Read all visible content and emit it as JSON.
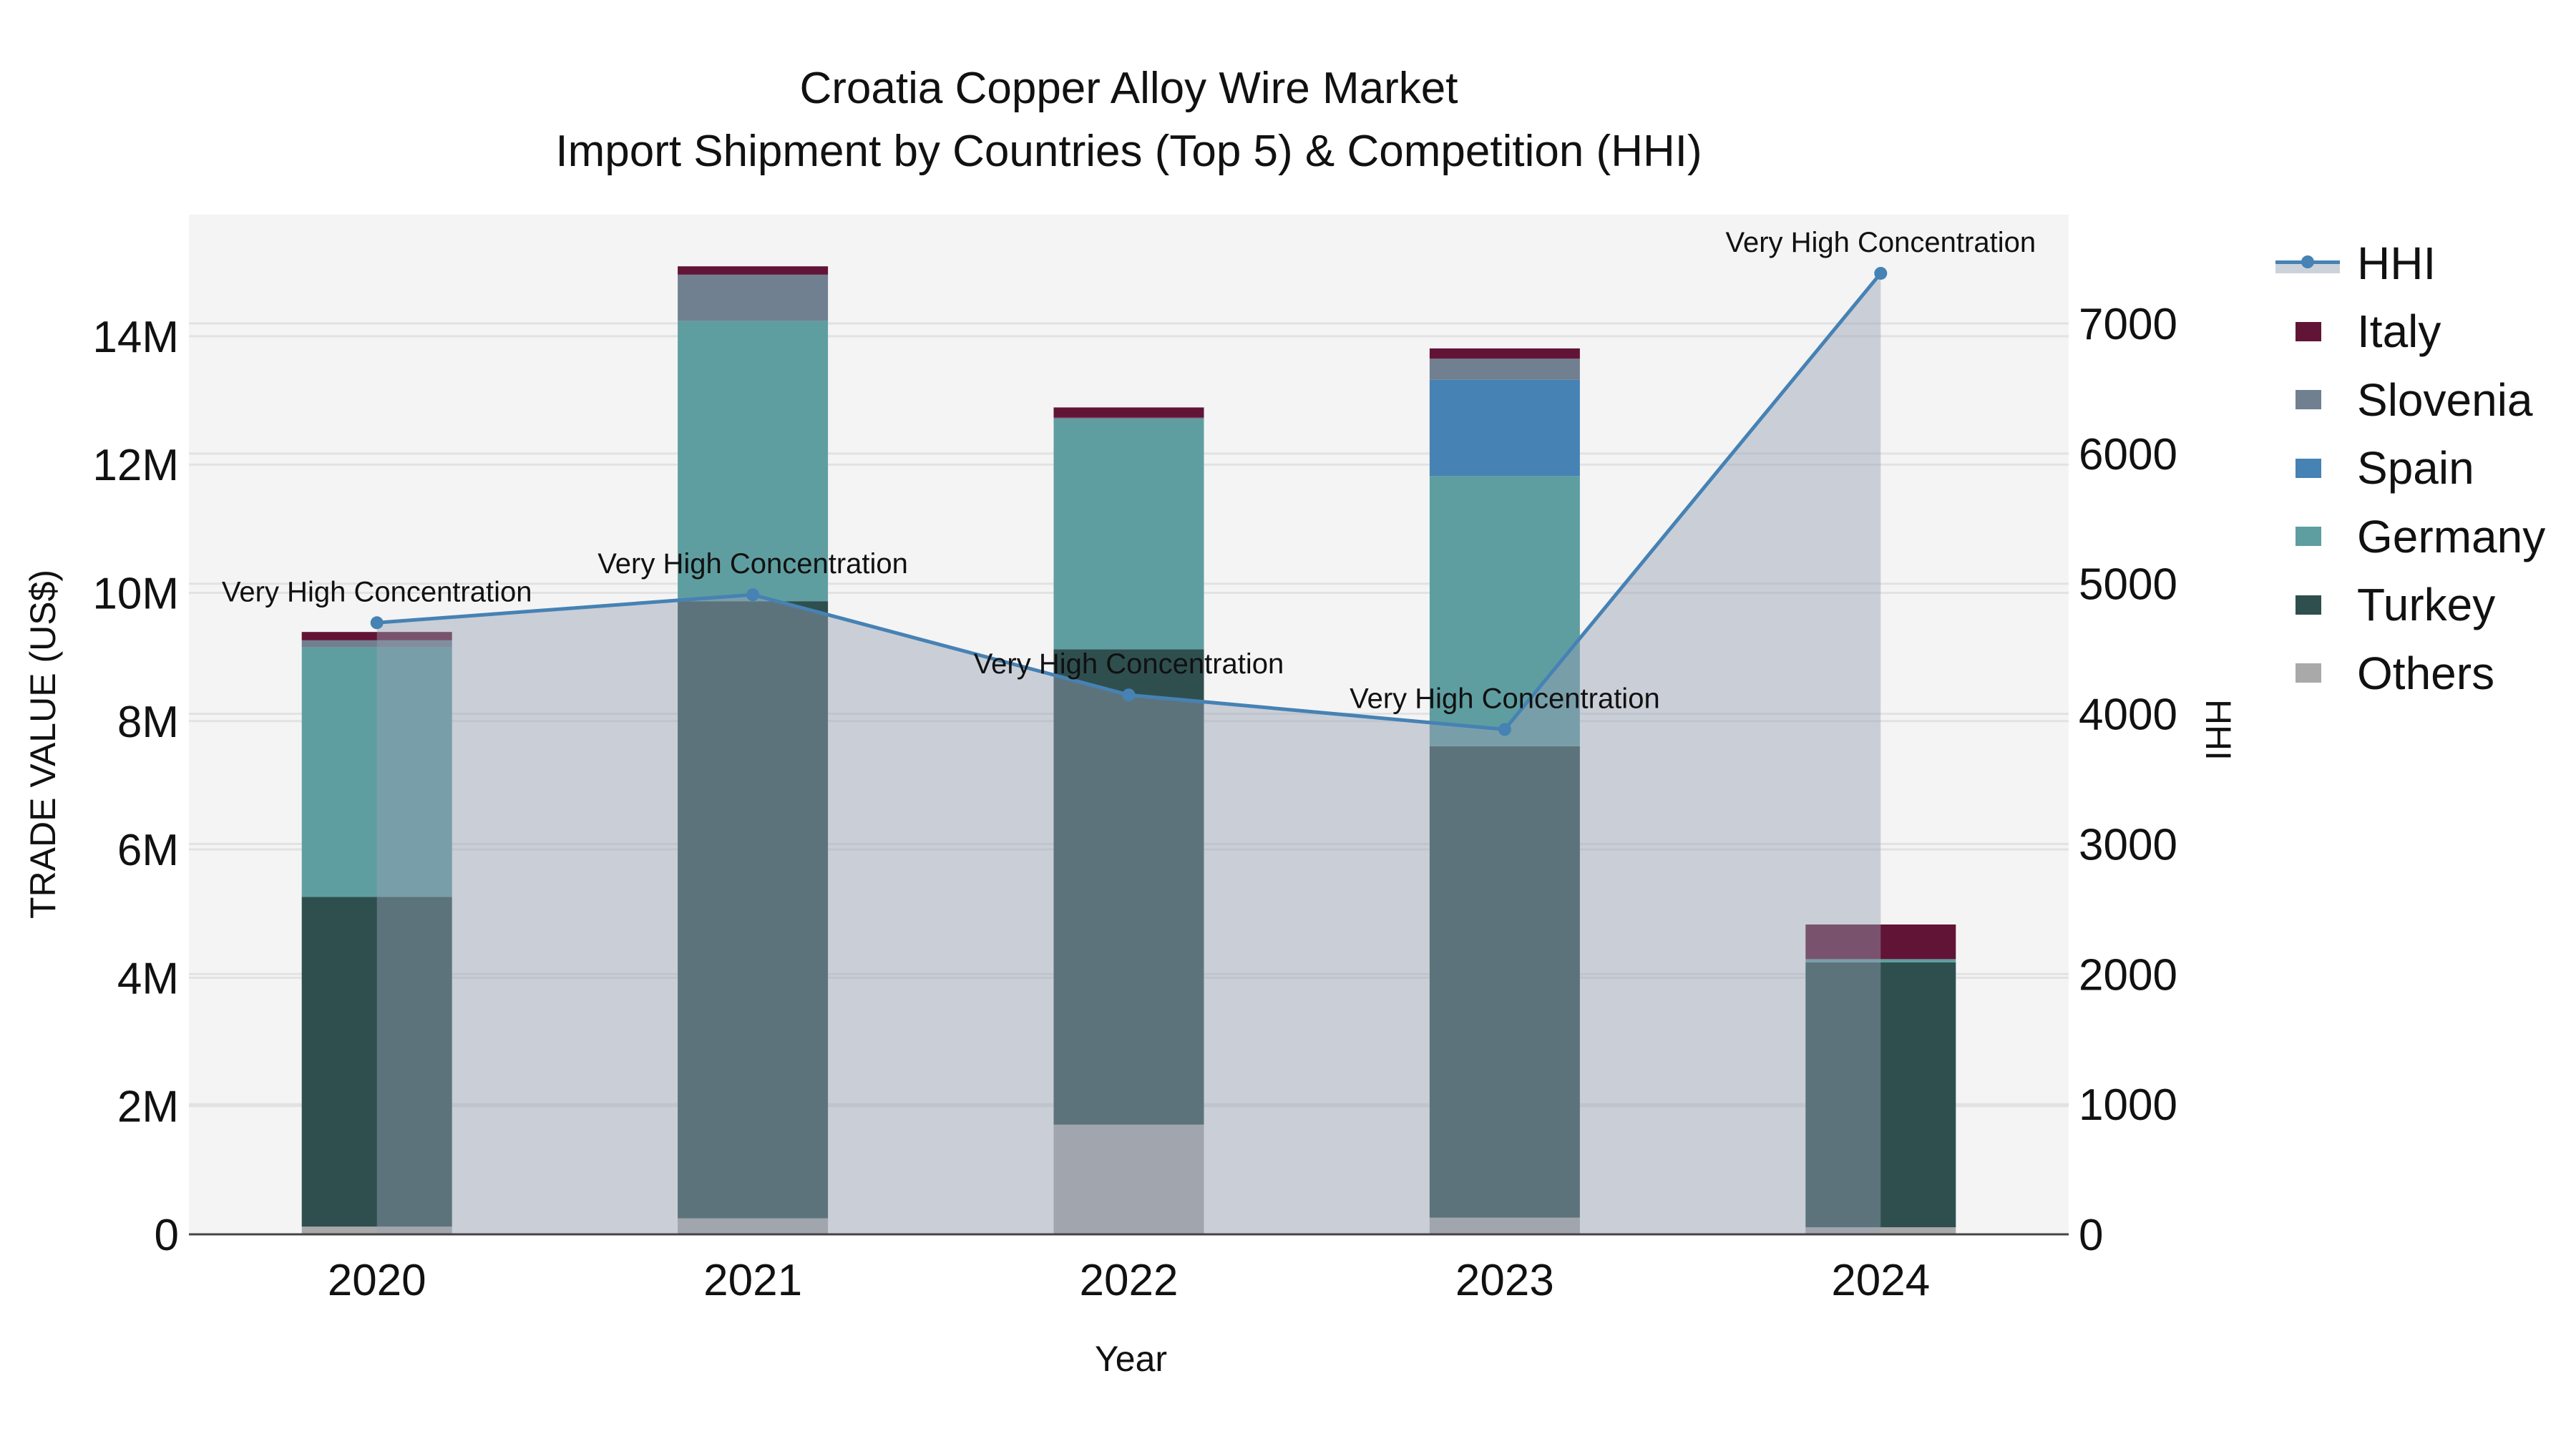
{
  "title": {
    "line1": "Croatia Copper Alloy Wire Market",
    "line2": "Import Shipment by Countries (Top 5) & Competition (HHI)"
  },
  "axes": {
    "x_title": "Year",
    "y_left_title": "TRADE VALUE (US$)",
    "y_right_title": "HHI",
    "y_left_ticks": [
      "0",
      "2M",
      "4M",
      "6M",
      "8M",
      "10M",
      "12M",
      "14M"
    ],
    "y_right_ticks": [
      "0",
      "1000",
      "2000",
      "3000",
      "4000",
      "5000",
      "6000",
      "7000"
    ]
  },
  "legend": {
    "items": [
      {
        "label": "HHI",
        "type": "line",
        "color": "#4682b4"
      },
      {
        "label": "Italy",
        "type": "bar",
        "color": "#621436"
      },
      {
        "label": "Slovenia",
        "type": "bar",
        "color": "#708090"
      },
      {
        "label": "Spain",
        "type": "bar",
        "color": "#4682b4"
      },
      {
        "label": "Germany",
        "type": "bar",
        "color": "#5f9ea0"
      },
      {
        "label": "Turkey",
        "type": "bar",
        "color": "#2f4f4f"
      },
      {
        "label": "Others",
        "type": "bar",
        "color": "#a9a9a9"
      }
    ]
  },
  "colors": {
    "plot_bg": "#f4f4f4",
    "grid": "#e2e2e2",
    "hhi_line": "#4682b4",
    "hhi_area": "rgba(150,160,180,0.45)"
  },
  "chart_data": {
    "type": "bar",
    "subtype": "stacked bar + line (secondary axis) with area fill",
    "title": "Croatia Copper Alloy Wire Market — Import Shipment by Countries (Top 5) & Competition (HHI)",
    "xlabel": "Year",
    "ylabel": "TRADE VALUE (US$)",
    "y2label": "HHI",
    "categories": [
      "2020",
      "2021",
      "2022",
      "2023",
      "2024"
    ],
    "ylim": [
      0,
      15800000
    ],
    "y2lim": [
      0,
      7900
    ],
    "grid": true,
    "legend_position": "right",
    "stack_order_bottom_to_top": [
      "Others",
      "Turkey",
      "Germany",
      "Spain",
      "Slovenia",
      "Italy"
    ],
    "series": [
      {
        "name": "Others",
        "color": "#a9a9a9",
        "values": [
          120000,
          250000,
          1710000,
          260000,
          110000
        ]
      },
      {
        "name": "Turkey",
        "color": "#2f4f4f",
        "values": [
          5140000,
          9620000,
          7410000,
          7350000,
          4130000
        ]
      },
      {
        "name": "Germany",
        "color": "#5f9ea0",
        "values": [
          3890000,
          4370000,
          3590000,
          4210000,
          50000
        ]
      },
      {
        "name": "Spain",
        "color": "#4682b4",
        "values": [
          0,
          0,
          0,
          1500000,
          0
        ]
      },
      {
        "name": "Slovenia",
        "color": "#708090",
        "values": [
          110000,
          720000,
          20000,
          330000,
          0
        ]
      },
      {
        "name": "Italy",
        "color": "#621436",
        "values": [
          130000,
          130000,
          160000,
          160000,
          540000
        ]
      }
    ],
    "line_series": {
      "name": "HHI",
      "axis": "right",
      "color": "#4682b4",
      "values": [
        4700,
        4915,
        4145,
        3880,
        7385
      ],
      "annotations": [
        "Very High Concentration",
        "Very High Concentration",
        "Very High Concentration",
        "Very High Concentration",
        "Very High Concentration"
      ]
    }
  }
}
